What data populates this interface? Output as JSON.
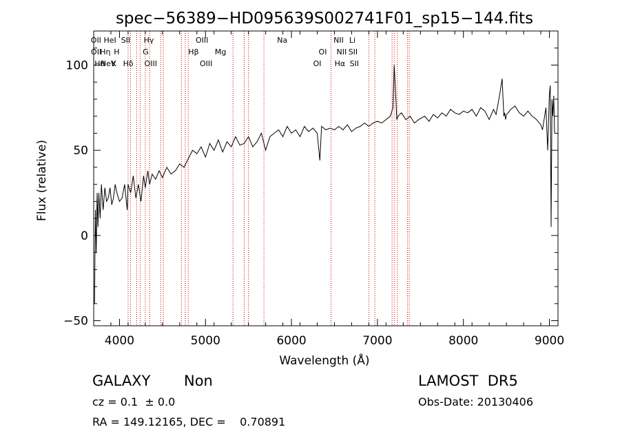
{
  "chart_data": {
    "type": "line",
    "title": "spec−56389−HD095639S002741F01_sp15−144.fits",
    "xlabel": "Wavelength (Å)",
    "ylabel": "Flux (relative)",
    "xlim": [
      3700,
      9100
    ],
    "ylim": [
      -53,
      120
    ],
    "x_ticks": [
      4000,
      5000,
      6000,
      7000,
      8000,
      9000
    ],
    "y_ticks": [
      -50,
      0,
      50,
      100
    ],
    "x_tick_labels": [
      "4000",
      "5000",
      "6000",
      "7000",
      "8000",
      "9000"
    ],
    "y_tick_labels": [
      "−50",
      "0",
      "50",
      "100"
    ],
    "grid": false,
    "series": [
      {
        "color": "#000000",
        "x": [
          3710,
          3720,
          3730,
          3740,
          3750,
          3760,
          3775,
          3790,
          3810,
          3830,
          3850,
          3870,
          3890,
          3910,
          3930,
          3950,
          3970,
          4000,
          4030,
          4060,
          4090,
          4100,
          4130,
          4160,
          4190,
          4220,
          4250,
          4280,
          4300,
          4330,
          4350,
          4380,
          4420,
          4460,
          4500,
          4550,
          4600,
          4650,
          4700,
          4750,
          4800,
          4850,
          4900,
          4950,
          5000,
          5050,
          5100,
          5150,
          5200,
          5250,
          5300,
          5350,
          5400,
          5450,
          5500,
          5550,
          5600,
          5650,
          5700,
          5750,
          5800,
          5850,
          5900,
          5950,
          6000,
          6050,
          6100,
          6150,
          6200,
          6250,
          6300,
          6330,
          6350,
          6400,
          6450,
          6500,
          6550,
          6600,
          6650,
          6700,
          6750,
          6800,
          6850,
          6900,
          6950,
          7000,
          7050,
          7100,
          7150,
          7180,
          7195,
          7205,
          7215,
          7225,
          7240,
          7280,
          7330,
          7380,
          7430,
          7480,
          7550,
          7600,
          7650,
          7700,
          7750,
          7800,
          7850,
          7900,
          7950,
          8000,
          8050,
          8100,
          8150,
          8200,
          8250,
          8300,
          8350,
          8380,
          8420,
          8450,
          8470,
          8480,
          8490,
          8500,
          8520,
          8550,
          8600,
          8650,
          8700,
          8750,
          8800,
          8850,
          8900,
          8920,
          8960,
          8980,
          9000,
          9010,
          9020,
          9030,
          9040,
          9050,
          9060
        ],
        "y": [
          -40,
          15,
          -10,
          25,
          5,
          25,
          10,
          30,
          15,
          28,
          20,
          22,
          28,
          18,
          22,
          30,
          25,
          20,
          22,
          30,
          15,
          30,
          25,
          35,
          22,
          30,
          20,
          35,
          28,
          38,
          30,
          36,
          33,
          38,
          34,
          40,
          36,
          38,
          42,
          40,
          45,
          50,
          48,
          52,
          46,
          54,
          50,
          56,
          49,
          55,
          52,
          58,
          53,
          54,
          58,
          52,
          55,
          60,
          50,
          58,
          60,
          62,
          58,
          64,
          60,
          62,
          58,
          64,
          61,
          63,
          60,
          44,
          64,
          62,
          63,
          62,
          64,
          62,
          65,
          61,
          63,
          64,
          66,
          64,
          66,
          67,
          66,
          68,
          70,
          75,
          100,
          90,
          80,
          68,
          70,
          72,
          68,
          70,
          66,
          68,
          70,
          67,
          71,
          69,
          72,
          70,
          74,
          72,
          71,
          73,
          72,
          74,
          70,
          75,
          73,
          68,
          74,
          71,
          82,
          92,
          70,
          72,
          68,
          71,
          72,
          74,
          76,
          72,
          70,
          73,
          70,
          68,
          65,
          62,
          75,
          50,
          83,
          88,
          5,
          80,
          70,
          82,
          60
        ]
      }
    ],
    "annotations": [
      {
        "wavelength": 3727,
        "label": "OII",
        "tier": 0
      },
      {
        "wavelength": 3729,
        "label": "OII",
        "tier": 1
      },
      {
        "wavelength": 3770,
        "label": "Hθ",
        "tier": 2
      },
      {
        "wavelength": 3835,
        "label": "Hη",
        "tier": 1
      },
      {
        "wavelength": 3869,
        "label": "NeV",
        "tier": 2
      },
      {
        "wavelength": 3889,
        "label": "HeI",
        "tier": 0
      },
      {
        "wavelength": 3934,
        "label": "K",
        "tier": 2
      },
      {
        "wavelength": 3968,
        "label": "H",
        "tier": 1
      },
      {
        "wavelength": 4072,
        "label": "SII",
        "tier": 0
      },
      {
        "wavelength": 4102,
        "label": "Hδ",
        "tier": 2
      },
      {
        "wavelength": 4304,
        "label": "G",
        "tier": 1
      },
      {
        "wavelength": 4341,
        "label": "Hγ",
        "tier": 0
      },
      {
        "wavelength": 4363,
        "label": "OIII",
        "tier": 2
      },
      {
        "wavelength": 4861,
        "label": "Hβ",
        "tier": 1
      },
      {
        "wavelength": 4959,
        "label": "OIII",
        "tier": 0
      },
      {
        "wavelength": 5007,
        "label": "OIII",
        "tier": 2
      },
      {
        "wavelength": 5175,
        "label": "Mg",
        "tier": 1
      },
      {
        "wavelength": 5893,
        "label": "Na",
        "tier": 0
      },
      {
        "wavelength": 6300,
        "label": "OI",
        "tier": 2
      },
      {
        "wavelength": 6364,
        "label": "OI",
        "tier": 1
      },
      {
        "wavelength": 6548,
        "label": "NII",
        "tier": 0
      },
      {
        "wavelength": 6563,
        "label": "Hα",
        "tier": 2
      },
      {
        "wavelength": 6583,
        "label": "NII",
        "tier": 1
      },
      {
        "wavelength": 6708,
        "label": "Li",
        "tier": 0
      },
      {
        "wavelength": 6716,
        "label": "SII",
        "tier": 1
      },
      {
        "wavelength": 6731,
        "label": "SII",
        "tier": 2
      }
    ],
    "annotation_line_color": "#cc0000",
    "line_positions": [
      4100,
      4128,
      4200,
      4240,
      4300,
      4350,
      4480,
      4510,
      4720,
      4765,
      4800,
      5320,
      5450,
      5500,
      5680,
      6460,
      6900,
      6970,
      7170,
      7195,
      7230,
      7350,
      7370
    ]
  },
  "info": {
    "object_class": "GALAXY",
    "subclass": "Non",
    "survey": "LAMOST  DR5",
    "cz_line": "cz = 0.1  ± 0.0",
    "obs_date": "Obs-Date: 20130406",
    "radec_line": "RA = 149.12165, DEC =    0.70891"
  }
}
